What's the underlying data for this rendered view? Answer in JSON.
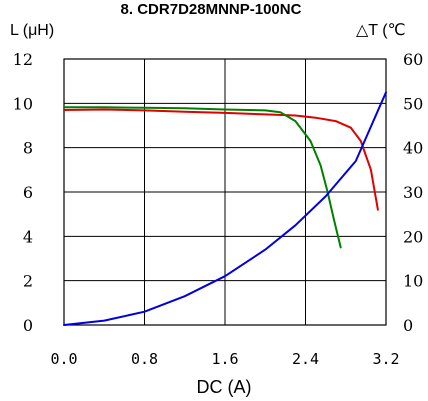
{
  "chart_data": {
    "type": "line",
    "title": "8. CDR7D28MNNP-100NC",
    "xlabel": "DC (A)",
    "ylabel_left": "L (μH)",
    "ylabel_right": "△T (℃",
    "xlim": [
      0,
      3.2
    ],
    "ylim_left": [
      0,
      12
    ],
    "ylim_right": [
      0,
      60
    ],
    "x_ticks": [
      "0.0",
      "0.8",
      "1.6",
      "2.4",
      "3.2"
    ],
    "x_tick_values": [
      0,
      0.8,
      1.6,
      2.4,
      3.2
    ],
    "y_left_ticks": [
      "0",
      "2",
      "4",
      "6",
      "8",
      "10",
      "12"
    ],
    "y_left_tick_values": [
      0,
      2,
      4,
      6,
      8,
      10,
      12
    ],
    "y_right_ticks": [
      "0",
      "10",
      "20",
      "30",
      "40",
      "50",
      "60"
    ],
    "y_right_tick_values": [
      0,
      10,
      20,
      30,
      40,
      50,
      60
    ],
    "grid": true,
    "legend": "none",
    "series": [
      {
        "color": "#e00000",
        "axis": "left",
        "x": [
          0,
          0.4,
          0.8,
          1.2,
          1.6,
          2.0,
          2.3,
          2.5,
          2.7,
          2.85,
          2.95,
          3.05,
          3.12
        ],
        "y": [
          9.7,
          9.72,
          9.68,
          9.62,
          9.57,
          9.5,
          9.45,
          9.35,
          9.2,
          8.9,
          8.3,
          7.0,
          5.2
        ]
      },
      {
        "color": "#008000",
        "axis": "left",
        "x": [
          0,
          0.4,
          0.8,
          1.2,
          1.6,
          2.0,
          2.15,
          2.3,
          2.45,
          2.55,
          2.62,
          2.68,
          2.75
        ],
        "y": [
          9.82,
          9.82,
          9.8,
          9.78,
          9.72,
          9.68,
          9.6,
          9.2,
          8.3,
          7.2,
          6.0,
          4.8,
          3.5
        ]
      },
      {
        "color": "#0000e0",
        "axis": "right",
        "x": [
          0,
          0.4,
          0.8,
          1.2,
          1.6,
          2.0,
          2.3,
          2.6,
          2.9,
          3.2
        ],
        "y": [
          0,
          1,
          3,
          6.5,
          11,
          17,
          22.5,
          29,
          37,
          52.5
        ]
      }
    ]
  }
}
